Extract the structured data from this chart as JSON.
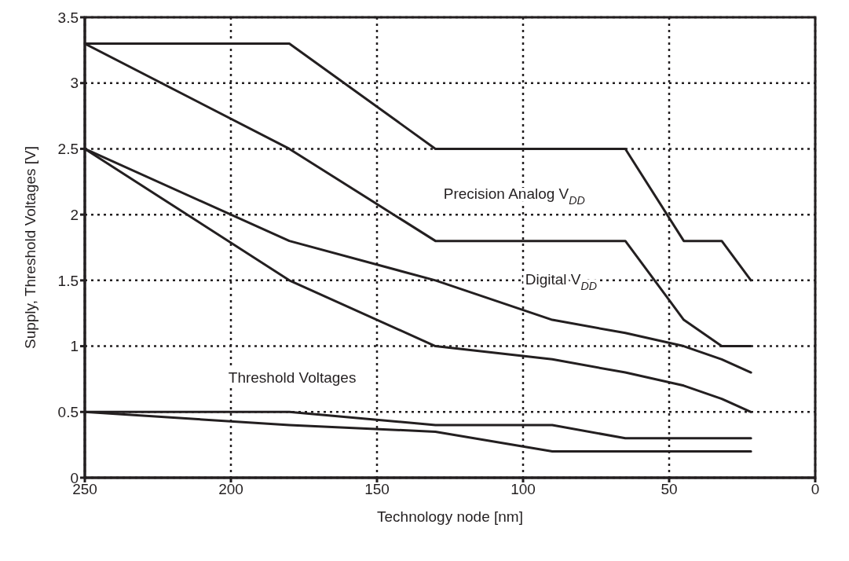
{
  "chart_data": {
    "type": "line",
    "xlabel": "Technology node [nm]",
    "ylabel": "Supply, Threshold Voltages [V]",
    "xlim": [
      250,
      0
    ],
    "xticks": [
      250,
      200,
      150,
      100,
      50,
      0
    ],
    "ylim": [
      0,
      3.5
    ],
    "yticks": [
      0,
      0.5,
      1,
      1.5,
      2,
      2.5,
      3,
      3.5
    ],
    "grid": true,
    "line_style": "solid",
    "marker": "none",
    "series": [
      {
        "color": "#231f20",
        "x": [
          250,
          180,
          130,
          65,
          45,
          32,
          22
        ],
        "values": [
          3.3,
          3.3,
          2.5,
          2.5,
          1.8,
          1.8,
          1.5
        ]
      },
      {
        "color": "#231f20",
        "x": [
          250,
          180,
          130,
          65,
          50,
          45,
          32,
          22
        ],
        "values": [
          3.3,
          2.5,
          1.8,
          1.8,
          1.35,
          1.2,
          1.0,
          1.0
        ]
      },
      {
        "color": "#231f20",
        "x": [
          250,
          180,
          130,
          90,
          65,
          45,
          32,
          22
        ],
        "values": [
          2.5,
          1.8,
          1.5,
          1.2,
          1.1,
          1.0,
          0.9,
          0.8
        ]
      },
      {
        "color": "#231f20",
        "x": [
          250,
          180,
          130,
          90,
          65,
          45,
          32,
          22
        ],
        "values": [
          2.5,
          1.5,
          1.0,
          0.9,
          0.8,
          0.7,
          0.6,
          0.5
        ]
      },
      {
        "color": "#231f20",
        "x": [
          250,
          180,
          130,
          90,
          65,
          22
        ],
        "values": [
          0.5,
          0.5,
          0.4,
          0.4,
          0.3,
          0.3
        ]
      },
      {
        "color": "#231f20",
        "x": [
          250,
          180,
          130,
          90,
          22
        ],
        "values": [
          0.5,
          0.4,
          0.35,
          0.2,
          0.2
        ]
      }
    ],
    "annotations": [
      "Precision Analog V$_{DD}$",
      "Digital V$_{DD}$",
      "Threshold Voltages"
    ]
  }
}
